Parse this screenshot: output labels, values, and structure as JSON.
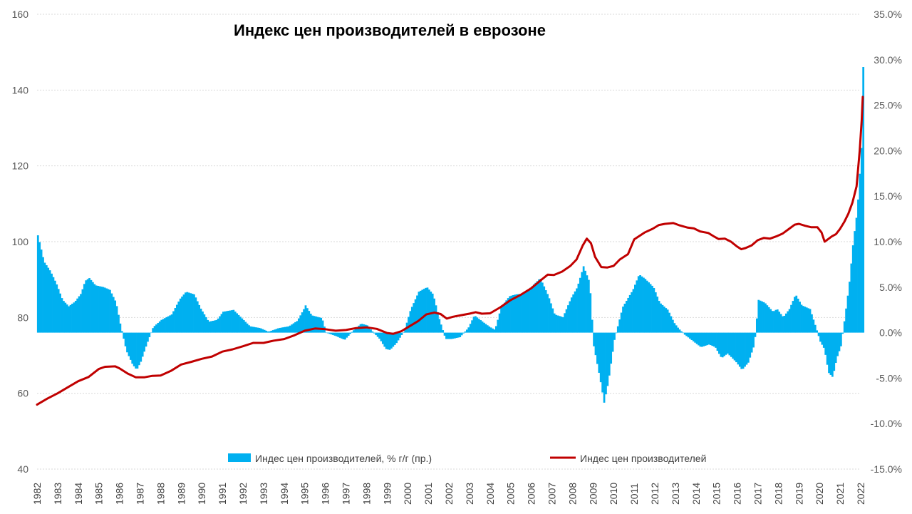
{
  "chart_data": {
    "type": "bar",
    "title": "Индекс цен производителей в еврозоне",
    "grid": true,
    "legend_position": "bottom",
    "x_range": [
      1982,
      2022
    ],
    "x_tick_labels": [
      "1982",
      "1983",
      "1984",
      "1985",
      "1986",
      "1987",
      "1988",
      "1989",
      "1990",
      "1991",
      "1992",
      "1993",
      "1994",
      "1995",
      "1996",
      "1997",
      "1998",
      "1999",
      "2000",
      "2001",
      "2002",
      "2003",
      "2004",
      "2005",
      "2006",
      "2007",
      "2008",
      "2009",
      "2010",
      "2011",
      "2012",
      "2013",
      "2014",
      "2015",
      "2016",
      "2017",
      "2018",
      "2019",
      "2020",
      "2021",
      "2022"
    ],
    "y_left": {
      "range": [
        40,
        160
      ],
      "ticks": [
        40,
        60,
        80,
        100,
        120,
        140,
        160
      ]
    },
    "y_right": {
      "range": [
        -15,
        35
      ],
      "ticks": [
        "-15.0%",
        "-10.0%",
        "-5.0%",
        "0.0%",
        "5.0%",
        "10.0%",
        "15.0%",
        "20.0%",
        "25.0%",
        "30.0%",
        "35.0%"
      ]
    },
    "series": [
      {
        "name": "Индес цен производителей, % г/г (пр.)",
        "type": "bar",
        "axis": "right",
        "color": "#00B0F0",
        "points": [
          [
            1982.0,
            10.7
          ],
          [
            1982.1,
            9.8
          ],
          [
            1982.3,
            7.8
          ],
          [
            1982.6,
            6.8
          ],
          [
            1982.9,
            5.4
          ],
          [
            1983.2,
            3.6
          ],
          [
            1983.5,
            2.9
          ],
          [
            1983.8,
            3.4
          ],
          [
            1984.1,
            4.3
          ],
          [
            1984.3,
            5.7
          ],
          [
            1984.5,
            6.0
          ],
          [
            1984.8,
            5.2
          ],
          [
            1985.2,
            5.0
          ],
          [
            1985.5,
            4.7
          ],
          [
            1985.8,
            3.3
          ],
          [
            1986.0,
            1.0
          ],
          [
            1986.3,
            -2.0
          ],
          [
            1986.6,
            -3.5
          ],
          [
            1986.8,
            -4.1
          ],
          [
            1987.0,
            -3.2
          ],
          [
            1987.3,
            -1.2
          ],
          [
            1987.6,
            0.6
          ],
          [
            1988.0,
            1.4
          ],
          [
            1988.5,
            2.0
          ],
          [
            1988.9,
            3.7
          ],
          [
            1989.2,
            4.5
          ],
          [
            1989.6,
            4.2
          ],
          [
            1989.9,
            2.7
          ],
          [
            1990.3,
            1.2
          ],
          [
            1990.7,
            1.4
          ],
          [
            1991.0,
            2.3
          ],
          [
            1991.5,
            2.5
          ],
          [
            1991.9,
            1.6
          ],
          [
            1992.3,
            0.7
          ],
          [
            1992.8,
            0.5
          ],
          [
            1993.2,
            0.1
          ],
          [
            1993.7,
            0.5
          ],
          [
            1994.2,
            0.7
          ],
          [
            1994.6,
            1.3
          ],
          [
            1994.9,
            2.5
          ],
          [
            1995.0,
            3.0
          ],
          [
            1995.3,
            1.9
          ],
          [
            1995.8,
            1.6
          ],
          [
            1996.0,
            0.0
          ],
          [
            1996.5,
            -0.4
          ],
          [
            1996.9,
            -0.8
          ],
          [
            1997.3,
            0.2
          ],
          [
            1997.7,
            1.0
          ],
          [
            1998.0,
            0.8
          ],
          [
            1998.3,
            0.0
          ],
          [
            1998.6,
            -0.7
          ],
          [
            1998.9,
            -1.8
          ],
          [
            1999.1,
            -1.9
          ],
          [
            1999.4,
            -1.2
          ],
          [
            1999.8,
            0.2
          ],
          [
            2000.1,
            2.5
          ],
          [
            2000.5,
            4.5
          ],
          [
            2000.9,
            5.0
          ],
          [
            2001.2,
            4.2
          ],
          [
            2001.5,
            1.5
          ],
          [
            2001.8,
            -0.7
          ],
          [
            2002.1,
            -0.7
          ],
          [
            2002.5,
            -0.5
          ],
          [
            2002.9,
            0.5
          ],
          [
            2003.2,
            1.9
          ],
          [
            2003.6,
            1.2
          ],
          [
            2003.9,
            0.7
          ],
          [
            2004.2,
            0.3
          ],
          [
            2004.5,
            2.8
          ],
          [
            2004.9,
            4.0
          ],
          [
            2005.2,
            4.2
          ],
          [
            2005.6,
            4.3
          ],
          [
            2006.0,
            5.1
          ],
          [
            2006.4,
            6.0
          ],
          [
            2006.8,
            4.0
          ],
          [
            2007.1,
            2.0
          ],
          [
            2007.5,
            1.7
          ],
          [
            2007.9,
            3.8
          ],
          [
            2008.2,
            5.0
          ],
          [
            2008.5,
            7.3
          ],
          [
            2008.8,
            5.5
          ],
          [
            2009.0,
            -1.5
          ],
          [
            2009.3,
            -5.0
          ],
          [
            2009.5,
            -7.7
          ],
          [
            2009.7,
            -5.5
          ],
          [
            2010.0,
            -0.8
          ],
          [
            2010.4,
            2.8
          ],
          [
            2010.9,
            4.7
          ],
          [
            2011.2,
            6.4
          ],
          [
            2011.5,
            5.9
          ],
          [
            2011.9,
            5.0
          ],
          [
            2012.2,
            3.3
          ],
          [
            2012.6,
            2.5
          ],
          [
            2012.9,
            1.1
          ],
          [
            2013.1,
            0.5
          ],
          [
            2013.4,
            -0.2
          ],
          [
            2013.8,
            -0.9
          ],
          [
            2014.2,
            -1.6
          ],
          [
            2014.6,
            -1.3
          ],
          [
            2014.9,
            -1.6
          ],
          [
            2015.2,
            -2.8
          ],
          [
            2015.5,
            -2.3
          ],
          [
            2015.9,
            -3.2
          ],
          [
            2016.2,
            -4.1
          ],
          [
            2016.5,
            -3.3
          ],
          [
            2016.8,
            -1.3
          ],
          [
            2017.0,
            3.6
          ],
          [
            2017.3,
            3.3
          ],
          [
            2017.7,
            2.3
          ],
          [
            2017.9,
            2.6
          ],
          [
            2018.2,
            1.7
          ],
          [
            2018.5,
            2.6
          ],
          [
            2018.8,
            4.2
          ],
          [
            2019.1,
            3.0
          ],
          [
            2019.5,
            2.6
          ],
          [
            2019.8,
            0.5
          ],
          [
            2020.0,
            -1.0
          ],
          [
            2020.2,
            -1.8
          ],
          [
            2020.4,
            -4.4
          ],
          [
            2020.6,
            -4.9
          ],
          [
            2020.8,
            -2.8
          ],
          [
            2021.0,
            -1.5
          ],
          [
            2021.2,
            1.8
          ],
          [
            2021.4,
            5.2
          ],
          [
            2021.6,
            10.0
          ],
          [
            2021.8,
            13.5
          ],
          [
            2022.0,
            20.3
          ],
          [
            2022.05,
            26.4
          ],
          [
            2022.1,
            30.6
          ]
        ]
      },
      {
        "name": "Индес цен производителей",
        "type": "line",
        "axis": "left",
        "color": "#C00000",
        "points": [
          [
            1982.0,
            57.0
          ],
          [
            1982.5,
            58.6
          ],
          [
            1983.0,
            60.0
          ],
          [
            1983.5,
            61.6
          ],
          [
            1984.0,
            63.2
          ],
          [
            1984.5,
            64.3
          ],
          [
            1985.0,
            66.4
          ],
          [
            1985.3,
            67.0
          ],
          [
            1985.8,
            67.1
          ],
          [
            1986.0,
            66.6
          ],
          [
            1986.4,
            65.2
          ],
          [
            1986.8,
            64.2
          ],
          [
            1987.2,
            64.2
          ],
          [
            1987.6,
            64.6
          ],
          [
            1988.0,
            64.7
          ],
          [
            1988.5,
            65.9
          ],
          [
            1989.0,
            67.6
          ],
          [
            1989.5,
            68.3
          ],
          [
            1990.0,
            69.1
          ],
          [
            1990.5,
            69.7
          ],
          [
            1991.0,
            71.0
          ],
          [
            1991.5,
            71.6
          ],
          [
            1992.0,
            72.4
          ],
          [
            1992.5,
            73.3
          ],
          [
            1993.0,
            73.3
          ],
          [
            1993.5,
            73.9
          ],
          [
            1994.0,
            74.3
          ],
          [
            1994.5,
            75.3
          ],
          [
            1995.0,
            76.5
          ],
          [
            1995.5,
            77.1
          ],
          [
            1996.0,
            76.9
          ],
          [
            1996.5,
            76.5
          ],
          [
            1997.0,
            76.7
          ],
          [
            1997.5,
            77.2
          ],
          [
            1998.0,
            77.4
          ],
          [
            1998.5,
            77.0
          ],
          [
            1999.0,
            75.9
          ],
          [
            1999.3,
            75.7
          ],
          [
            1999.7,
            76.4
          ],
          [
            2000.0,
            77.4
          ],
          [
            2000.5,
            79.0
          ],
          [
            2000.9,
            80.8
          ],
          [
            2001.3,
            81.3
          ],
          [
            2001.6,
            80.9
          ],
          [
            2001.9,
            79.7
          ],
          [
            2002.2,
            80.2
          ],
          [
            2002.6,
            80.6
          ],
          [
            2003.0,
            81.0
          ],
          [
            2003.3,
            81.4
          ],
          [
            2003.6,
            81.0
          ],
          [
            2004.0,
            81.1
          ],
          [
            2004.5,
            82.7
          ],
          [
            2005.0,
            84.6
          ],
          [
            2005.5,
            86.0
          ],
          [
            2006.0,
            87.7
          ],
          [
            2006.5,
            90.0
          ],
          [
            2006.8,
            91.3
          ],
          [
            2007.1,
            91.2
          ],
          [
            2007.5,
            92.1
          ],
          [
            2007.9,
            93.6
          ],
          [
            2008.2,
            95.3
          ],
          [
            2008.5,
            99.0
          ],
          [
            2008.7,
            100.8
          ],
          [
            2008.9,
            99.6
          ],
          [
            2009.1,
            96.0
          ],
          [
            2009.4,
            93.3
          ],
          [
            2009.7,
            93.2
          ],
          [
            2010.0,
            93.6
          ],
          [
            2010.3,
            95.3
          ],
          [
            2010.7,
            96.7
          ],
          [
            2011.0,
            100.6
          ],
          [
            2011.5,
            102.4
          ],
          [
            2011.9,
            103.4
          ],
          [
            2012.2,
            104.4
          ],
          [
            2012.5,
            104.7
          ],
          [
            2012.9,
            104.9
          ],
          [
            2013.2,
            104.3
          ],
          [
            2013.6,
            103.7
          ],
          [
            2013.9,
            103.5
          ],
          [
            2014.2,
            102.7
          ],
          [
            2014.6,
            102.3
          ],
          [
            2014.9,
            101.3
          ],
          [
            2015.1,
            100.7
          ],
          [
            2015.4,
            100.8
          ],
          [
            2015.7,
            100.0
          ],
          [
            2016.0,
            98.7
          ],
          [
            2016.2,
            98.0
          ],
          [
            2016.4,
            98.3
          ],
          [
            2016.7,
            99.0
          ],
          [
            2017.0,
            100.4
          ],
          [
            2017.3,
            101.0
          ],
          [
            2017.6,
            100.8
          ],
          [
            2017.9,
            101.4
          ],
          [
            2018.2,
            102.1
          ],
          [
            2018.5,
            103.3
          ],
          [
            2018.8,
            104.5
          ],
          [
            2019.0,
            104.7
          ],
          [
            2019.3,
            104.2
          ],
          [
            2019.6,
            103.8
          ],
          [
            2019.9,
            103.8
          ],
          [
            2020.1,
            102.4
          ],
          [
            2020.25,
            100.0
          ],
          [
            2020.4,
            100.6
          ],
          [
            2020.6,
            101.4
          ],
          [
            2020.8,
            102.0
          ],
          [
            2021.0,
            103.4
          ],
          [
            2021.2,
            105.2
          ],
          [
            2021.4,
            107.4
          ],
          [
            2021.6,
            110.3
          ],
          [
            2021.8,
            114.6
          ],
          [
            2021.95,
            124.0
          ],
          [
            2022.05,
            132.0
          ],
          [
            2022.1,
            138.2
          ]
        ]
      }
    ]
  }
}
